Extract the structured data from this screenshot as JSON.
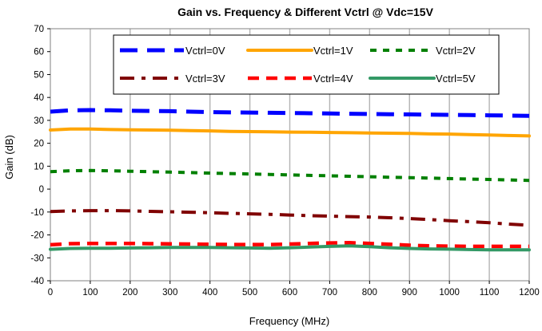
{
  "chart_data": {
    "type": "line",
    "title": "Gain vs. Frequency & Different Vctrl @ Vdc=15V",
    "xlabel": "Frequency (MHz)",
    "ylabel": "Gain (dB)",
    "xlim": [
      0,
      1200
    ],
    "ylim": [
      -40,
      70
    ],
    "xticks": [
      0,
      100,
      200,
      300,
      400,
      500,
      600,
      700,
      800,
      900,
      1000,
      1100,
      1200
    ],
    "yticks": [
      -40,
      -30,
      -20,
      -10,
      0,
      10,
      20,
      30,
      40,
      50,
      60,
      70
    ],
    "grid": "vertical",
    "legend": "top-right",
    "x": [
      0,
      50,
      100,
      150,
      200,
      250,
      300,
      350,
      400,
      450,
      500,
      550,
      600,
      650,
      700,
      750,
      800,
      850,
      900,
      950,
      1000,
      1050,
      1100,
      1150,
      1200
    ],
    "series": [
      {
        "name": "Vctrl=0V",
        "color": "#0000ff",
        "style": "dash-long",
        "values": [
          33.8,
          34.4,
          34.5,
          34.4,
          34.2,
          34.1,
          34.0,
          33.8,
          33.6,
          33.5,
          33.4,
          33.3,
          33.2,
          33.1,
          33.0,
          32.9,
          32.8,
          32.7,
          32.6,
          32.5,
          32.4,
          32.3,
          32.2,
          32.1,
          32.0
        ]
      },
      {
        "name": "Vctrl=1V",
        "color": "#ffa500",
        "style": "solid",
        "values": [
          25.8,
          26.2,
          26.2,
          26.0,
          25.9,
          25.8,
          25.7,
          25.5,
          25.4,
          25.2,
          25.1,
          25.0,
          24.9,
          24.8,
          24.7,
          24.6,
          24.5,
          24.4,
          24.3,
          24.1,
          24.0,
          23.8,
          23.6,
          23.4,
          23.2
        ]
      },
      {
        "name": "Vctrl=2V",
        "color": "#008000",
        "style": "dash-short",
        "values": [
          7.6,
          8.0,
          8.1,
          8.0,
          7.8,
          7.6,
          7.4,
          7.2,
          7.0,
          6.8,
          6.6,
          6.4,
          6.2,
          6.0,
          5.8,
          5.6,
          5.4,
          5.2,
          5.0,
          4.8,
          4.6,
          4.4,
          4.2,
          4.0,
          3.8
        ]
      },
      {
        "name": "Vctrl=3V",
        "color": "#800000",
        "style": "dash-dot",
        "values": [
          -9.8,
          -9.5,
          -9.4,
          -9.4,
          -9.5,
          -9.7,
          -9.9,
          -10.1,
          -10.3,
          -10.6,
          -10.8,
          -11.0,
          -11.3,
          -11.6,
          -11.8,
          -12.0,
          -12.2,
          -12.5,
          -12.9,
          -13.3,
          -13.8,
          -14.2,
          -14.7,
          -15.3,
          -15.8
        ]
      },
      {
        "name": "Vctrl=4V",
        "color": "#ff0000",
        "style": "dash-med",
        "values": [
          -24.3,
          -23.8,
          -23.7,
          -23.7,
          -23.7,
          -23.8,
          -23.9,
          -24.0,
          -24.1,
          -24.2,
          -24.2,
          -24.2,
          -24.0,
          -23.7,
          -23.5,
          -23.4,
          -23.7,
          -24.1,
          -24.5,
          -24.8,
          -24.9,
          -25.0,
          -25.0,
          -25.0,
          -25.0
        ]
      },
      {
        "name": "Vctrl=5V",
        "color": "#339966",
        "style": "solid",
        "values": [
          -26.3,
          -25.9,
          -25.8,
          -25.8,
          -25.7,
          -25.6,
          -25.5,
          -25.5,
          -25.5,
          -25.6,
          -25.7,
          -25.8,
          -25.6,
          -25.3,
          -25.0,
          -24.8,
          -25.1,
          -25.6,
          -25.9,
          -26.1,
          -26.2,
          -26.4,
          -26.5,
          -26.5,
          -26.5
        ]
      }
    ]
  }
}
